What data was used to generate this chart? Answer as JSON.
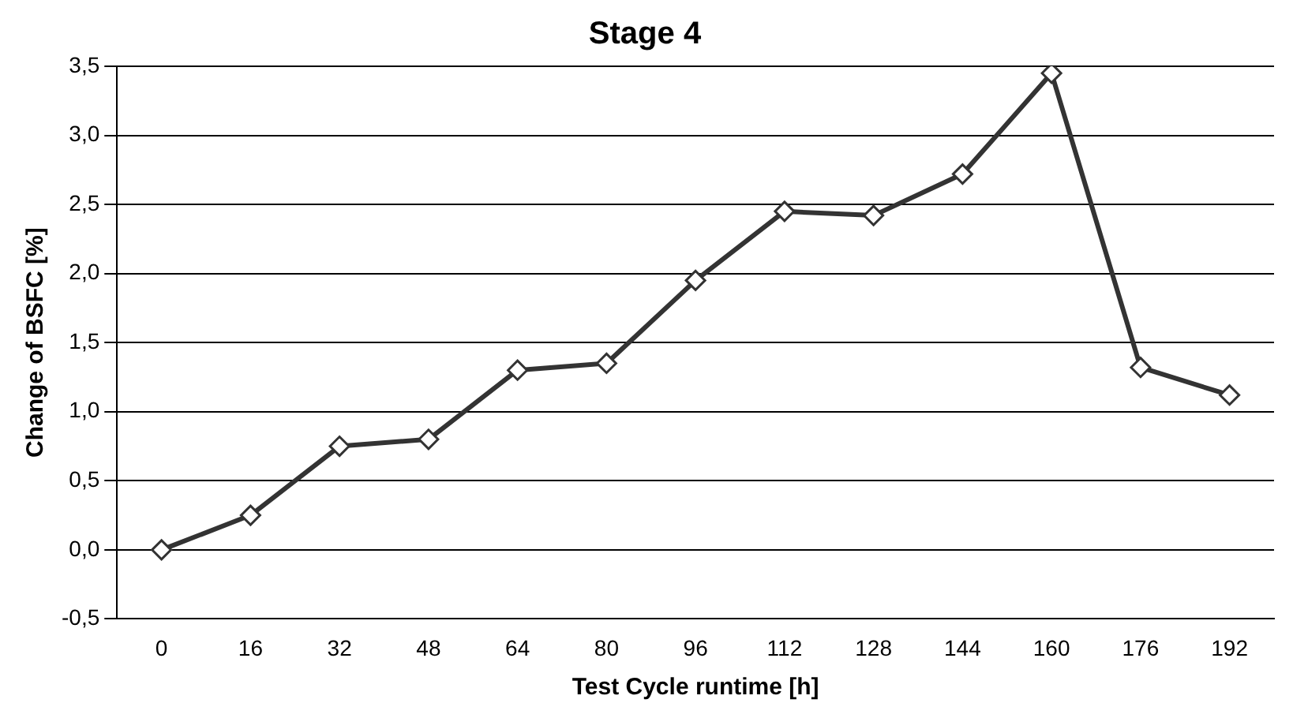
{
  "chart_data": {
    "type": "line",
    "title": "Stage 4",
    "xlabel": "Test Cycle runtime [h]",
    "ylabel": "Change of BSFC [%]",
    "categories": [
      "0",
      "16",
      "32",
      "48",
      "64",
      "80",
      "96",
      "112",
      "128",
      "144",
      "160",
      "176",
      "192"
    ],
    "series": [
      {
        "color": "#333333",
        "values": [
          0.0,
          0.25,
          0.75,
          0.8,
          1.3,
          1.35,
          1.95,
          2.45,
          2.42,
          2.72,
          3.45,
          1.32,
          1.12
        ]
      }
    ],
    "ylim": [
      -0.5,
      3.5
    ],
    "yticks": [
      {
        "value": -0.5,
        "label": "-0,5"
      },
      {
        "value": 0,
        "label": "0,0"
      },
      {
        "value": 0.5,
        "label": "0,5"
      },
      {
        "value": 1,
        "label": "1,0"
      },
      {
        "value": 1.5,
        "label": "1,5"
      },
      {
        "value": 2,
        "label": "2,0"
      },
      {
        "value": 2.5,
        "label": "2,5"
      },
      {
        "value": 3,
        "label": "3,0"
      },
      {
        "value": 3.5,
        "label": "3,5"
      }
    ],
    "grid": "y",
    "legend": false,
    "marker": "diamond",
    "line_style": "solid"
  }
}
